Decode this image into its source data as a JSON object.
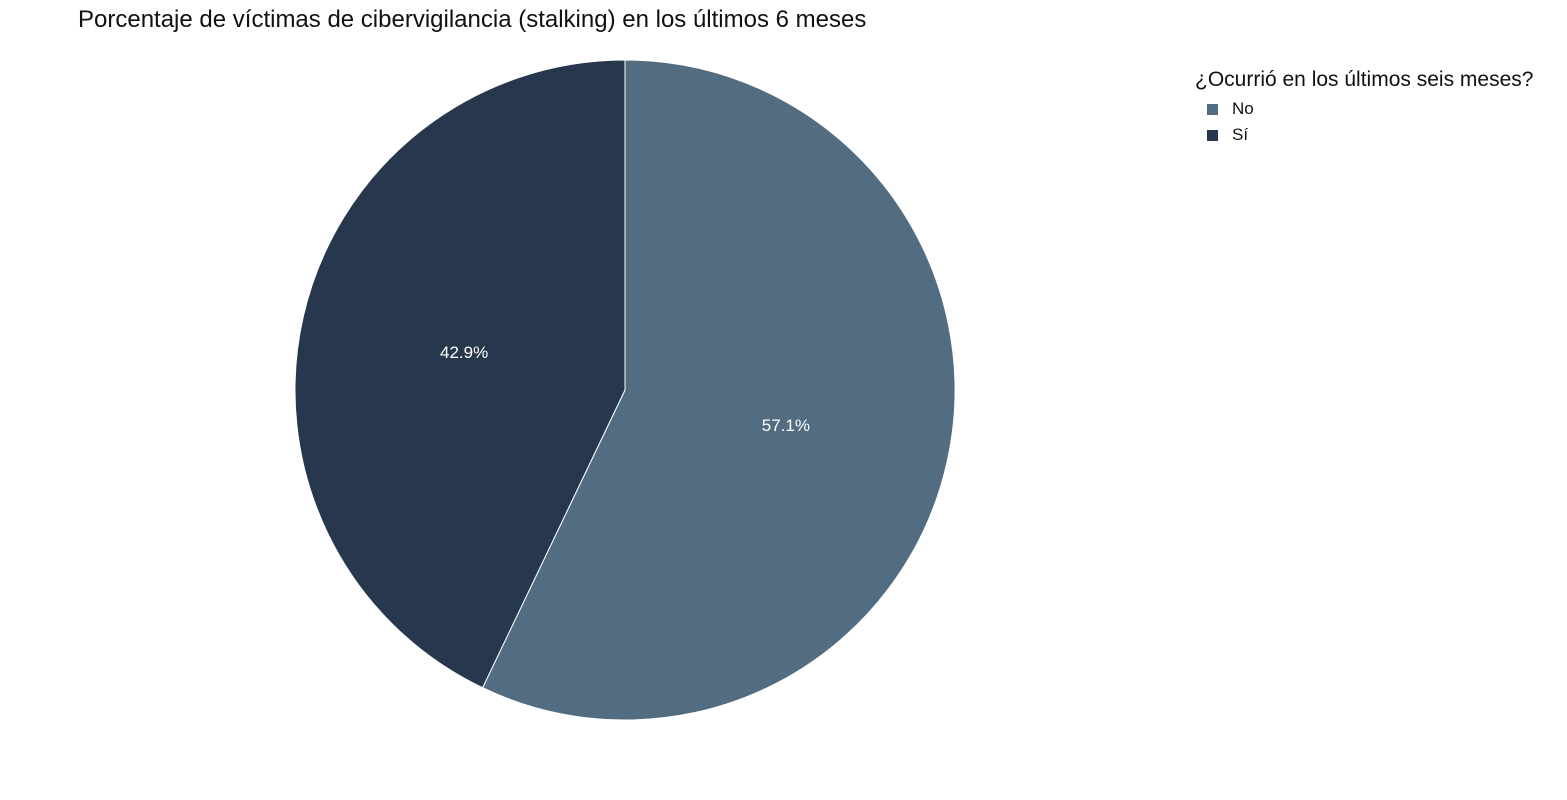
{
  "chart_data": {
    "type": "pie",
    "title": "Porcentaje de víctimas de cibervigilancia (stalking) en los últimos 6 meses",
    "legend_title": "¿Ocurrió en los últimos seis meses?",
    "legend_position": "top-right",
    "slices": [
      {
        "label": "No",
        "value": 57.1,
        "display": "57.1%",
        "color": "#526d82"
      },
      {
        "label": "Sí",
        "value": 42.9,
        "display": "42.9%",
        "color": "#27374d"
      }
    ]
  }
}
